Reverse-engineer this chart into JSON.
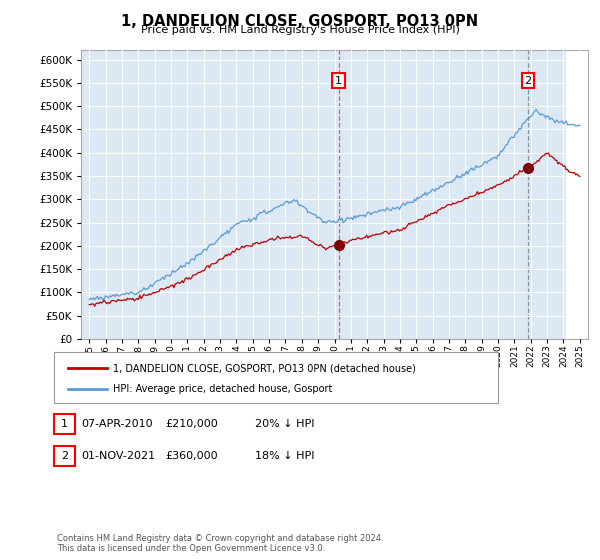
{
  "title": "1, DANDELION CLOSE, GOSPORT, PO13 0PN",
  "subtitle": "Price paid vs. HM Land Registry's House Price Index (HPI)",
  "legend_line1": "1, DANDELION CLOSE, GOSPORT, PO13 0PN (detached house)",
  "legend_line2": "HPI: Average price, detached house, Gosport",
  "transaction1_date": "07-APR-2010",
  "transaction1_price": "£210,000",
  "transaction1_hpi": "20% ↓ HPI",
  "transaction2_date": "01-NOV-2021",
  "transaction2_price": "£360,000",
  "transaction2_hpi": "18% ↓ HPI",
  "footer": "Contains HM Land Registry data © Crown copyright and database right 2024.\nThis data is licensed under the Open Government Licence v3.0.",
  "hpi_color": "#5b9bd5",
  "price_color": "#c00000",
  "marker1_x": 2010.25,
  "marker2_x": 2021.83,
  "ylim_min": 0,
  "ylim_max": 620000,
  "xlim_min": 1994.5,
  "xlim_max": 2025.5,
  "background_color": "#dce9f5",
  "hatch_x_start": 2024.17
}
